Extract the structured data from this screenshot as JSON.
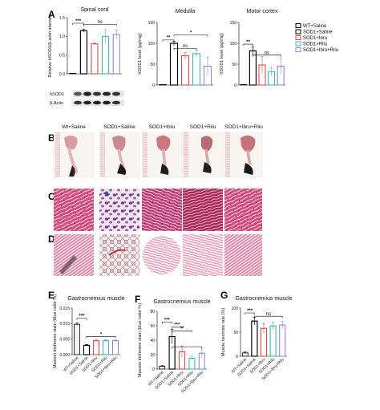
{
  "panel_letters": {
    "A": "A",
    "B": "B",
    "C": "C",
    "D": "D",
    "E": "E",
    "F": "F",
    "G": "G"
  },
  "legend": [
    {
      "name": "WT+Saline",
      "color": "#f2f2f2"
    },
    {
      "name": "SOD1+Saline",
      "color": "#3a3a3a"
    },
    {
      "name": "SOD1+Ibru",
      "color": "#e8464b"
    },
    {
      "name": "SOD1+Rilu",
      "color": "#3fb6a8"
    },
    {
      "name": "SOD1+Ibru+Rilu",
      "color": "#8a8ad8"
    }
  ],
  "blot": {
    "row1": "hSOD1",
    "row2": "β-Actin"
  },
  "image_groups": [
    "Wt+Saline",
    "SOD1+Saline",
    "SOD1+Ibru",
    "SOD1+Rilu",
    "SOD1+Ibru+Rilu"
  ],
  "row_labels": {
    "B": "B",
    "C": "C",
    "D": "D"
  },
  "chart_data": [
    {
      "id": "A1",
      "type": "bar",
      "title": "Spinal cord",
      "ylabel": "Relative hSOD1/β-actin intensity",
      "ylim": [
        0,
        1.5
      ],
      "yticks": [
        "0.0",
        "0.5",
        "1.0",
        "1.5"
      ],
      "categories": [
        "WT+Saline",
        "SOD1+Saline",
        "SOD1+Ibru",
        "SOD1+Rilu",
        "SOD1+Ibru+Rilu"
      ],
      "values": [
        0,
        1.15,
        0.8,
        1.0,
        1.05
      ],
      "errors": [
        0,
        0.04,
        0.03,
        0.18,
        0.12
      ],
      "annotations": [
        {
          "text": "***",
          "from": 0,
          "to": 1,
          "y": 1.35
        },
        {
          "text": "ns",
          "from": 1,
          "to": 4,
          "y": 1.32
        }
      ]
    },
    {
      "id": "A2",
      "type": "bar",
      "title": "Medulla",
      "ylabel": "hSOD1 level (pg/mg)",
      "ylim": [
        0,
        150
      ],
      "yticks": [
        "0",
        "50",
        "100",
        "150"
      ],
      "categories": [
        "WT+Saline",
        "SOD1+Saline",
        "SOD1+Ibru",
        "SOD1+Rilu",
        "SOD1+Ibru+Rilu"
      ],
      "values": [
        0,
        100,
        70,
        75,
        45
      ],
      "errors": [
        0,
        5,
        8,
        8,
        22
      ],
      "annotations": [
        {
          "text": "**",
          "from": 0,
          "to": 1,
          "y": 108
        },
        {
          "text": "ns",
          "from": 1,
          "to": 3,
          "y": 88
        },
        {
          "text": "*",
          "from": 1,
          "to": 4,
          "y": 120
        }
      ]
    },
    {
      "id": "A3",
      "type": "bar",
      "title": "Motor cortex",
      "ylabel": "hSOD1 level (pg/mg)",
      "ylim": [
        0,
        150
      ],
      "yticks": [
        "0",
        "50",
        "100",
        "150"
      ],
      "categories": [
        "WT+Saline",
        "SOD1+Saline",
        "SOD1+Ibru",
        "SOD1+Rilu",
        "SOD1+Ibru+Rilu"
      ],
      "values": [
        0,
        82,
        48,
        32,
        45
      ],
      "errors": [
        0,
        10,
        20,
        10,
        20
      ],
      "annotations": [
        {
          "text": "**",
          "from": 0,
          "to": 1,
          "y": 98
        },
        {
          "text": "ns",
          "from": 1,
          "to": 4,
          "y": 72
        }
      ]
    },
    {
      "id": "E",
      "type": "bar",
      "title": "Gastrocnemius muscle",
      "ylabel": "Masson trichrome stain (blue color %)",
      "ylim": [
        0,
        0.015
      ],
      "yticks": [
        "0.000",
        "0.005",
        "0.010",
        "0.015"
      ],
      "categories": [
        "WT+Saline",
        "SOD1+Saline",
        "SOD1+Ibru",
        "SOD1+Rilu",
        "SOD1+Ibru+Rilu"
      ],
      "values": [
        0.0098,
        0.003,
        0.0045,
        0.0045,
        0.0045
      ],
      "errors": [
        0.0004,
        0.0003,
        0.0003,
        0.0003,
        0.0003
      ],
      "annotations": [
        {
          "text": "***",
          "from": 0,
          "to": 1,
          "y": 0.0117
        },
        {
          "text": "*",
          "from": 1,
          "to": 4,
          "y": 0.0058
        }
      ]
    },
    {
      "id": "F",
      "type": "bar",
      "title": "Gastrocnemius muscle",
      "ylabel": "Masson trichrome stain (blue color %)",
      "ylim": [
        0,
        80
      ],
      "yticks": [
        "0",
        "20",
        "40",
        "60",
        "80"
      ],
      "categories": [
        "WT+Saline",
        "SOD1+Saline",
        "SOD1+Ibru",
        "SOD1+Rilu",
        "SOD1+Ibru+Rilu"
      ],
      "values": [
        4,
        45,
        24,
        15,
        22
      ],
      "errors": [
        1,
        10,
        8,
        3,
        6
      ],
      "annotations": [
        {
          "text": "***",
          "from": 0,
          "to": 1,
          "y": 65
        },
        {
          "text": "***",
          "from": 1,
          "to": 2,
          "y": 58
        },
        {
          "text": "**",
          "from": 1,
          "to": 3,
          "y": 53
        },
        {
          "text": "",
          "from": 1,
          "to": 4,
          "y": 31
        }
      ]
    },
    {
      "id": "G",
      "type": "bar",
      "title": "Gastrocnemius muscle",
      "ylabel": "Muscle necrosis rate (%)",
      "ylim": [
        0,
        100
      ],
      "yticks": [
        "0",
        "50",
        "100"
      ],
      "categories": [
        "WT+Saline",
        "SOD1+Saline",
        "SOD1+Ibru",
        "SOD1+Rilu",
        "SOD1+Ibru+Rilu"
      ],
      "values": [
        7,
        73,
        58,
        63,
        65
      ],
      "errors": [
        2,
        8,
        10,
        8,
        8
      ],
      "annotations": [
        {
          "text": "***",
          "from": 0,
          "to": 1,
          "y": 90
        },
        {
          "text": "ns",
          "from": 1,
          "to": 4,
          "y": 83
        }
      ]
    }
  ]
}
